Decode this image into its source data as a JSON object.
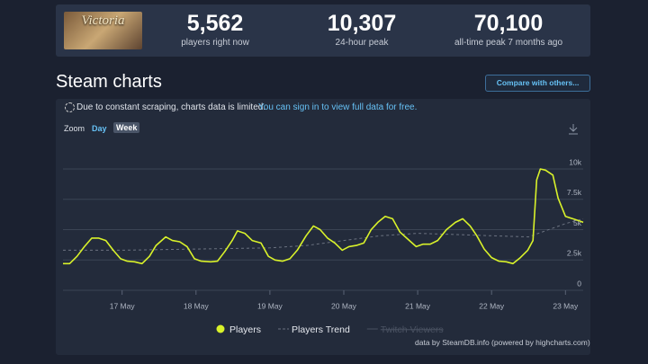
{
  "header": {
    "game_logo": "Victoria",
    "stats": [
      {
        "value": "5,562",
        "label": "players right now"
      },
      {
        "value": "10,307",
        "label": "24-hour peak"
      },
      {
        "value": "70,100",
        "label": "all-time peak 7 months ago"
      }
    ]
  },
  "section_title": "Steam charts",
  "compare_button": "Compare with others...",
  "notice": {
    "text": "Due to constant scraping, charts data is limited.",
    "link": "You can sign in to view full data for free."
  },
  "zoom": {
    "label": "Zoom",
    "options": [
      "Day",
      "Week"
    ]
  },
  "chart_data": {
    "type": "line",
    "xlim": [
      16.2,
      23.24
    ],
    "xticks": [
      {
        "value": 17,
        "label": "17 May"
      },
      {
        "value": 18,
        "label": "18 May"
      },
      {
        "value": 19,
        "label": "19 May"
      },
      {
        "value": 20,
        "label": "20 May"
      },
      {
        "value": 21,
        "label": "21 May"
      },
      {
        "value": 22,
        "label": "22 May"
      },
      {
        "value": 23,
        "label": "23 May"
      }
    ],
    "ylim": [
      0,
      12000
    ],
    "yticks": [
      0,
      {
        "value": 2500,
        "label": "2.5k"
      },
      {
        "value": 5000,
        "label": "5k"
      },
      {
        "value": 7500,
        "label": "7.5k"
      },
      {
        "value": 10000,
        "label": "10k"
      }
    ],
    "grid": true,
    "series": [
      {
        "name": "Players",
        "color": "#d9f22a",
        "x": [
          16.2,
          16.29,
          16.39,
          16.49,
          16.59,
          16.68,
          16.78,
          16.88,
          16.98,
          17.07,
          17.17,
          17.27,
          17.37,
          17.46,
          17.59,
          17.68,
          17.78,
          17.88,
          17.98,
          18.07,
          18.2,
          18.29,
          18.39,
          18.49,
          18.56,
          18.66,
          18.76,
          18.88,
          18.98,
          19.07,
          19.17,
          19.27,
          19.37,
          19.49,
          19.59,
          19.68,
          19.78,
          19.88,
          19.98,
          20.07,
          20.17,
          20.27,
          20.37,
          20.46,
          20.56,
          20.66,
          20.76,
          20.85,
          20.98,
          21.07,
          21.17,
          21.27,
          21.39,
          21.51,
          21.61,
          21.71,
          21.8,
          21.9,
          22.0,
          22.1,
          22.2,
          22.29,
          22.39,
          22.49,
          22.56,
          22.61,
          22.66,
          22.73,
          22.83,
          22.9,
          23.0,
          23.1,
          23.2,
          23.24
        ],
        "values": [
          2200,
          2200,
          2800,
          3600,
          4300,
          4300,
          4100,
          3300,
          2600,
          2400,
          2350,
          2200,
          2800,
          3700,
          4400,
          4100,
          4000,
          3600,
          2600,
          2400,
          2350,
          2400,
          3200,
          4100,
          4900,
          4700,
          4100,
          3900,
          2800,
          2500,
          2400,
          2600,
          3300,
          4500,
          5300,
          5000,
          4300,
          3900,
          3300,
          3600,
          3700,
          3900,
          5000,
          5600,
          6100,
          5900,
          4800,
          4300,
          3600,
          3800,
          3800,
          4100,
          5000,
          5600,
          5900,
          5300,
          4500,
          3400,
          2700,
          2400,
          2350,
          2200,
          2700,
          3300,
          4100,
          9100,
          10000,
          9900,
          9500,
          7600,
          6100,
          5900,
          5700,
          5600
        ]
      },
      {
        "name": "Players Trend",
        "color": "#6b7280",
        "dashed": true,
        "x": [
          16.2,
          17,
          18,
          19,
          19.5,
          20,
          20.5,
          21,
          21.5,
          22,
          22.5,
          23,
          23.24
        ],
        "values": [
          3300,
          3300,
          3400,
          3500,
          3700,
          4100,
          4500,
          4700,
          4600,
          4500,
          4400,
          5500,
          5900
        ]
      }
    ],
    "legend_disabled": "Twitch Viewers"
  },
  "footer": "data by SteamDB.info (powered by highcharts.com)"
}
